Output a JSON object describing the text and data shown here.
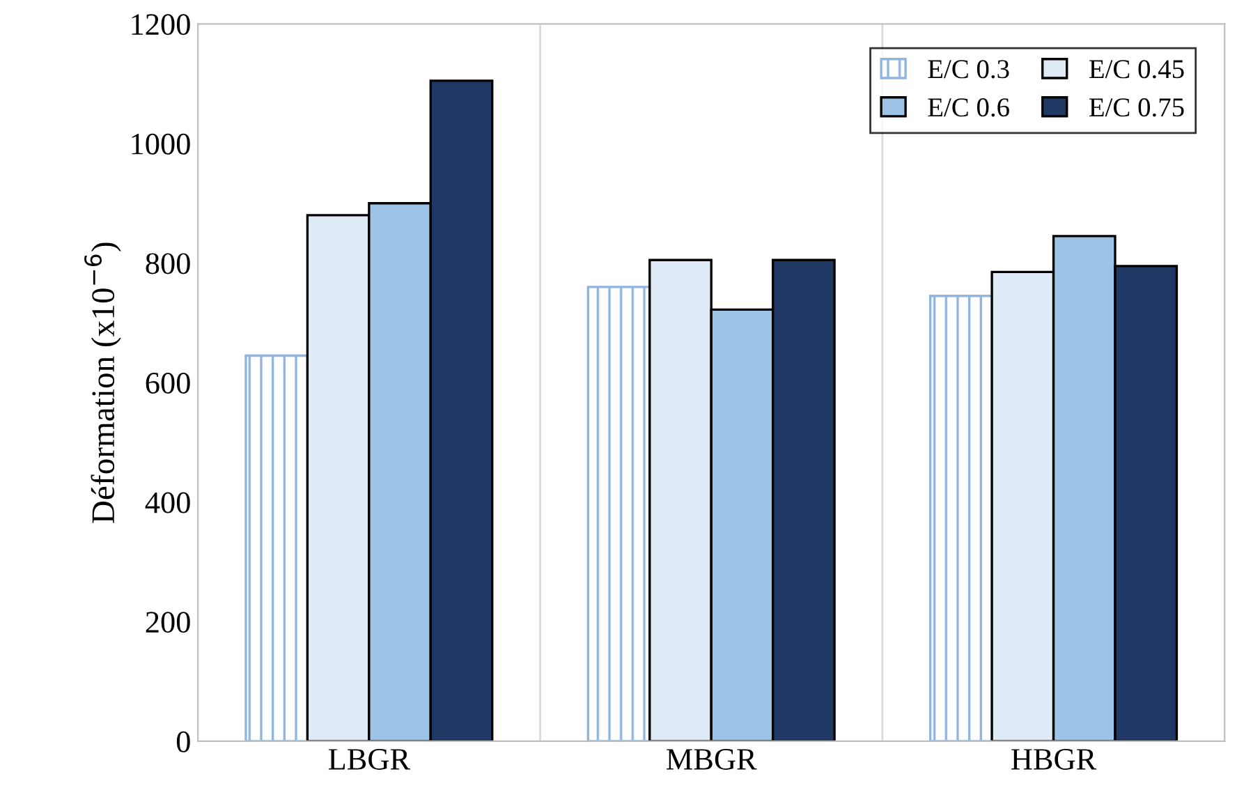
{
  "chart_data": {
    "type": "bar",
    "ylabel": "Déformation (x10$^{−6}$)",
    "categories": [
      "LBGR",
      "MBGR",
      "HBGR"
    ],
    "series": [
      {
        "name": "E/C 0.3",
        "color": "#8fb4de",
        "values": [
          645,
          760,
          745
        ]
      },
      {
        "name": "E/C 0.45",
        "color": "#deebf7",
        "values": [
          880,
          805,
          785
        ]
      },
      {
        "name": "E/C 0.6",
        "color": "#9dc3e6",
        "values": [
          900,
          722,
          845
        ]
      },
      {
        "name": "E/C 0.75",
        "color": "#1f3864",
        "values": [
          1105,
          805,
          795
        ]
      }
    ],
    "ylim": [
      0,
      1200
    ],
    "yticks": [
      0,
      200,
      400,
      600,
      800,
      1000,
      1200
    ],
    "grid": "x",
    "legend": "top right"
  }
}
